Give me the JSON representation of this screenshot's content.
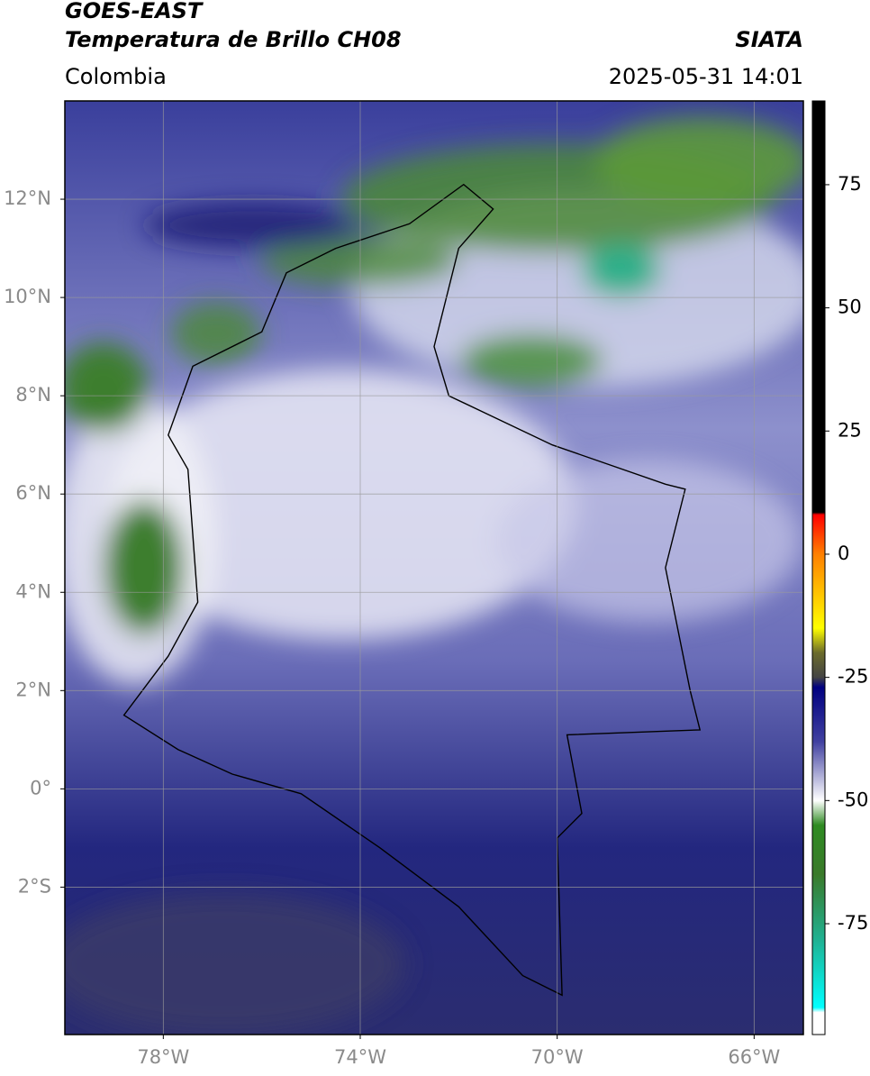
{
  "header": {
    "title": "GOES-EAST",
    "subtitle": "Temperatura de Brillo CH08",
    "source": "SIATA",
    "region": "Colombia",
    "datetime": "2025-05-31 14:01"
  },
  "map": {
    "xlim": [
      -80,
      -65
    ],
    "ylim": [
      -5,
      14
    ],
    "xticks": [
      {
        "value": -78,
        "label": "78°W"
      },
      {
        "value": -74,
        "label": "74°W"
      },
      {
        "value": -70,
        "label": "70°W"
      },
      {
        "value": -66,
        "label": "66°W"
      }
    ],
    "yticks": [
      {
        "value": 12,
        "label": "12°N"
      },
      {
        "value": 10,
        "label": "10°N"
      },
      {
        "value": 8,
        "label": "8°N"
      },
      {
        "value": 6,
        "label": "6°N"
      },
      {
        "value": 4,
        "label": "4°N"
      },
      {
        "value": 2,
        "label": "2°N"
      },
      {
        "value": 0,
        "label": "0°"
      },
      {
        "value": -2,
        "label": "2°S"
      }
    ],
    "grid": true
  },
  "colorbar": {
    "lim": [
      -97.5,
      92
    ],
    "ticks": [
      75,
      50,
      25,
      0,
      -25,
      -50,
      -75
    ],
    "stops": [
      {
        "value": 92,
        "color": "#000000"
      },
      {
        "value": 8.5,
        "color": "#000000"
      },
      {
        "value": 8,
        "color": "#ff0000"
      },
      {
        "value": 0,
        "color": "#ff8000"
      },
      {
        "value": -15,
        "color": "#ffff00"
      },
      {
        "value": -20,
        "color": "#6b6b2a"
      },
      {
        "value": -25,
        "color": "#444444"
      },
      {
        "value": -27,
        "color": "#000080"
      },
      {
        "value": -38,
        "color": "#4040a0"
      },
      {
        "value": -50,
        "color": "#ffffff"
      },
      {
        "value": -55,
        "color": "#2e8b22"
      },
      {
        "value": -65,
        "color": "#3a7a2a"
      },
      {
        "value": -78,
        "color": "#20b090"
      },
      {
        "value": -92,
        "color": "#00ffff"
      },
      {
        "value": -93,
        "color": "#ffffff"
      },
      {
        "value": -97.5,
        "color": "#ffffff"
      }
    ]
  }
}
